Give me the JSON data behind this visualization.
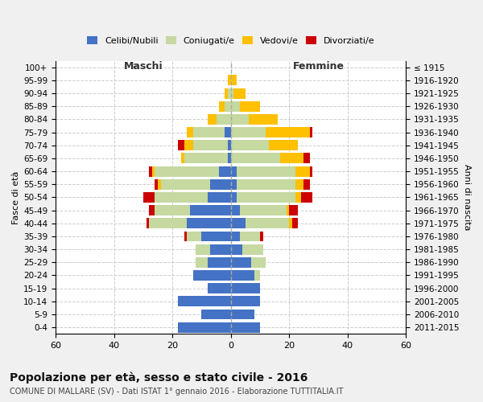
{
  "age_groups": [
    "0-4",
    "5-9",
    "10-14",
    "15-19",
    "20-24",
    "25-29",
    "30-34",
    "35-39",
    "40-44",
    "45-49",
    "50-54",
    "55-59",
    "60-64",
    "65-69",
    "70-74",
    "75-79",
    "80-84",
    "85-89",
    "90-94",
    "95-99",
    "100+"
  ],
  "birth_years": [
    "2011-2015",
    "2006-2010",
    "2001-2005",
    "1996-2000",
    "1991-1995",
    "1986-1990",
    "1981-1985",
    "1976-1980",
    "1971-1975",
    "1966-1970",
    "1961-1965",
    "1956-1960",
    "1951-1955",
    "1946-1950",
    "1941-1945",
    "1936-1940",
    "1931-1935",
    "1926-1930",
    "1921-1925",
    "1916-1920",
    "≤ 1915"
  ],
  "maschi": {
    "celibi": [
      18,
      10,
      18,
      8,
      13,
      8,
      7,
      10,
      15,
      14,
      8,
      7,
      4,
      1,
      1,
      2,
      0,
      0,
      0,
      0,
      0
    ],
    "coniugati": [
      0,
      0,
      0,
      0,
      0,
      4,
      5,
      5,
      13,
      12,
      18,
      17,
      22,
      15,
      12,
      11,
      5,
      2,
      1,
      0,
      0
    ],
    "vedovi": [
      0,
      0,
      0,
      0,
      0,
      0,
      0,
      0,
      0,
      0,
      0,
      1,
      1,
      1,
      3,
      2,
      3,
      2,
      1,
      1,
      0
    ],
    "divorziati": [
      0,
      0,
      0,
      0,
      0,
      0,
      0,
      1,
      1,
      2,
      4,
      1,
      1,
      0,
      2,
      0,
      0,
      0,
      0,
      0,
      0
    ]
  },
  "femmine": {
    "nubili": [
      10,
      8,
      10,
      10,
      8,
      7,
      4,
      3,
      5,
      3,
      2,
      2,
      2,
      0,
      0,
      0,
      0,
      0,
      0,
      0,
      0
    ],
    "coniugate": [
      0,
      0,
      0,
      0,
      2,
      5,
      7,
      7,
      15,
      16,
      20,
      20,
      20,
      17,
      13,
      12,
      6,
      3,
      1,
      0,
      0
    ],
    "vedove": [
      0,
      0,
      0,
      0,
      0,
      0,
      0,
      0,
      1,
      1,
      2,
      3,
      5,
      8,
      10,
      15,
      10,
      7,
      4,
      2,
      0
    ],
    "divorziate": [
      0,
      0,
      0,
      0,
      0,
      0,
      0,
      1,
      2,
      3,
      4,
      2,
      1,
      2,
      0,
      1,
      0,
      0,
      0,
      0,
      0
    ]
  },
  "colors": {
    "celibi": "#4472c4",
    "coniugati": "#c5d9a0",
    "vedovi": "#ffc000",
    "divorziati": "#cc0000"
  },
  "xlim": 60,
  "title": "Popolazione per età, sesso e stato civile - 2016",
  "subtitle": "COMUNE DI MALLARE (SV) - Dati ISTAT 1° gennaio 2016 - Elaborazione TUTTITALIA.IT",
  "ylabel_left": "Fasce di età",
  "ylabel_right": "Anni di nascita",
  "xlabel_left": "Maschi",
  "xlabel_right": "Femmine",
  "bg_color": "#f0f0f0",
  "plot_bg_color": "#ffffff"
}
